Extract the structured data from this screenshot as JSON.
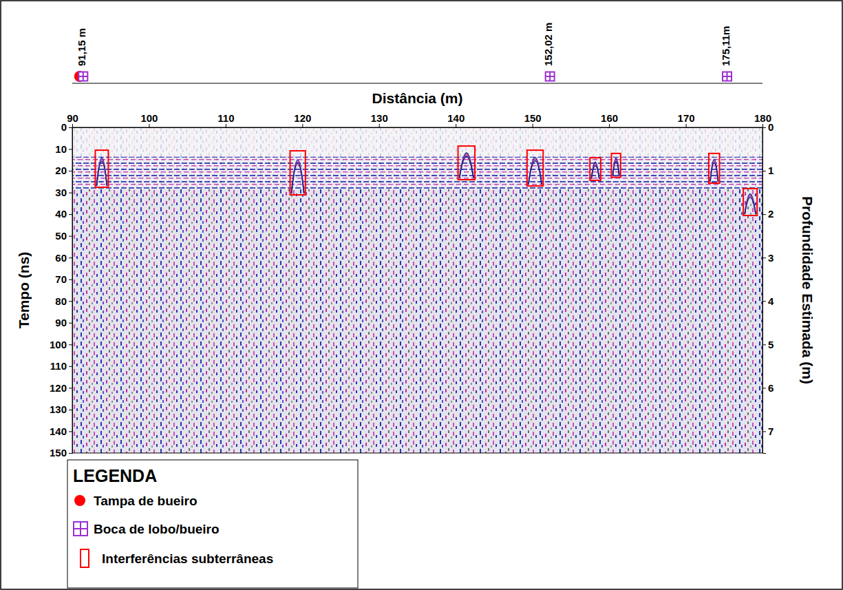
{
  "chart_data": {
    "type": "radargram",
    "xlabel": "Distância (m)",
    "ylabel": "Tempo (ns)",
    "y2label": "Profundidade Estimada (m)",
    "xlim": [
      90,
      180
    ],
    "xticks": [
      90,
      100,
      110,
      120,
      130,
      140,
      150,
      160,
      170,
      180
    ],
    "ylim": [
      0,
      150
    ],
    "yticks": [
      0,
      10,
      20,
      30,
      40,
      50,
      60,
      70,
      80,
      90,
      100,
      110,
      120,
      130,
      140,
      150
    ],
    "y2lim": [
      0,
      7.5
    ],
    "y2ticks": [
      0,
      1,
      2,
      3,
      4,
      5,
      6,
      7
    ],
    "markers": [
      {
        "name": "Tampa de bueiro",
        "color": "#ff0000",
        "marker": "circle",
        "x": [
          91.15
        ]
      },
      {
        "name": "Boca de lobo/bueiro",
        "color": "#9b30d0",
        "marker": "square-cross",
        "x": [
          91.15,
          152.02,
          175.11
        ]
      }
    ],
    "marker_labels": [
      {
        "x": 91.15,
        "label": "91,15 m"
      },
      {
        "x": 152.02,
        "label": "152,02 m"
      },
      {
        "x": 175.11,
        "label": "175,11m"
      }
    ],
    "anomalies": {
      "name": "Interferências subterrâneas",
      "color": "#ff0000",
      "x0": [
        93.0,
        118.4,
        140.3,
        149.3,
        157.5,
        160.3,
        173.0,
        177.5
      ],
      "x1": [
        94.7,
        120.4,
        142.5,
        151.4,
        158.9,
        161.5,
        174.4,
        179.3
      ],
      "t0": [
        10.5,
        10.8,
        8.6,
        10.5,
        14.0,
        12.0,
        12.0,
        28.2
      ],
      "t1": [
        27.6,
        31.1,
        24.1,
        27.0,
        24.4,
        23.0,
        25.7,
        40.6
      ]
    },
    "legend_title": "LEGENDA",
    "legend": "lower-left"
  }
}
